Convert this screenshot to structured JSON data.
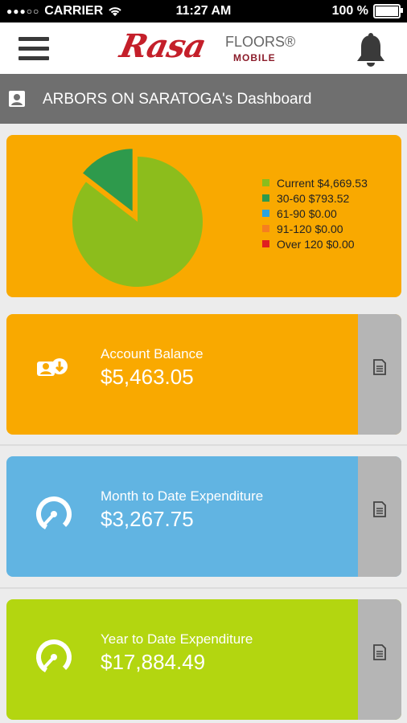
{
  "status_bar": {
    "carrier": "CARRIER",
    "time": "11:27 AM",
    "battery": "100 %"
  },
  "header": {
    "logo_main": "Rasa",
    "logo_floors": "FLOORS®",
    "logo_mobile": "MOBILE"
  },
  "title_bar": {
    "title": "ARBORS ON SARATOGA's Dashboard"
  },
  "chart_data": {
    "type": "pie",
    "slices": [
      {
        "label": "Current $4,669.53",
        "value": 4669.53,
        "color": "#8cbd1c"
      },
      {
        "label": "30-60 $793.52",
        "value": 793.52,
        "color": "#2e9a4c"
      },
      {
        "label": "61-90 $0.00",
        "value": 0.0,
        "color": "#2aa3df"
      },
      {
        "label": "91-120 $0.00",
        "value": 0.0,
        "color": "#f57f20"
      },
      {
        "label": "Over 120 $0.00",
        "value": 0.0,
        "color": "#e02020"
      }
    ]
  },
  "cards": [
    {
      "label": "Account Balance",
      "value": "$5,463.05",
      "color": "#f9a900",
      "icon": "account-balance-icon"
    },
    {
      "label": "Month to Date Expenditure",
      "value": "$3,267.75",
      "color": "#61b4e2",
      "icon": "gauge-icon"
    },
    {
      "label": "Year to Date Expenditure",
      "value": "$17,884.49",
      "color": "#b3d610",
      "icon": "gauge-icon"
    }
  ]
}
